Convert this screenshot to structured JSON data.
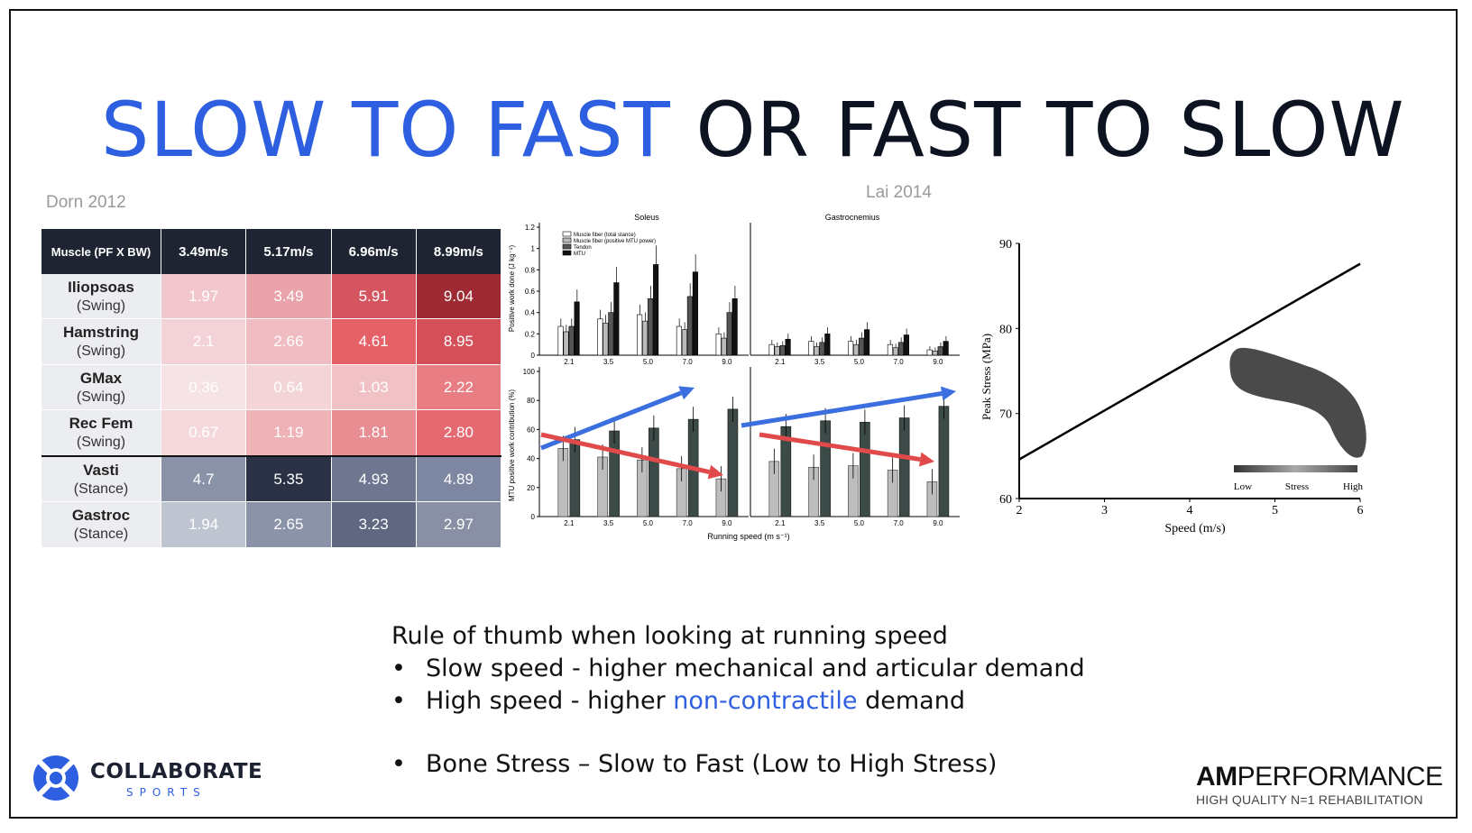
{
  "title": {
    "part1": "SLOW TO FAST",
    "part2": "OR",
    "part3": "FAST TO SLOW"
  },
  "citations": {
    "left": "Dorn 2012",
    "middle": "Lai 2014"
  },
  "table": {
    "headers": [
      "Muscle (PF X BW)",
      "3.49m/s",
      "5.17m/s",
      "6.96m/s",
      "8.99m/s"
    ],
    "rows": [
      {
        "name": "Iliopsoas",
        "phase": "(Swing)",
        "values": [
          "1.97",
          "3.49",
          "5.91",
          "9.04"
        ],
        "colors": [
          "#f1c6cc",
          "#eaa3ab",
          "#d4555f",
          "#9e2b33"
        ]
      },
      {
        "name": "Hamstring",
        "phase": "(Swing)",
        "values": [
          "2.1",
          "2.66",
          "4.61",
          "8.95"
        ],
        "colors": [
          "#f3d3d7",
          "#efbcc2",
          "#e46167",
          "#d44f58"
        ]
      },
      {
        "name": "GMax",
        "phase": "(Swing)",
        "values": [
          "0.36",
          "0.64",
          "1.03",
          "2.22"
        ],
        "colors": [
          "#f6e3e5",
          "#f3d5d8",
          "#f0c2c6",
          "#e87d83"
        ]
      },
      {
        "name": "Rec Fem",
        "phase": "(Swing)",
        "values": [
          "0.67",
          "1.19",
          "1.81",
          "2.80"
        ],
        "colors": [
          "#f4d8db",
          "#eeb2b7",
          "#e88e93",
          "#e46970"
        ]
      },
      {
        "name": "Vasti",
        "phase": "(Stance)",
        "values": [
          "4.7",
          "5.35",
          "4.93",
          "4.89"
        ],
        "colors": [
          "#8a92a8",
          "#2c3245",
          "#6f7790",
          "#7e87a1"
        ]
      },
      {
        "name": "Gastroc",
        "phase": "(Stance)",
        "values": [
          "1.94",
          "2.65",
          "3.23",
          "2.97"
        ],
        "colors": [
          "#bfc4d1",
          "#8b93a8",
          "#5f6781",
          "#8990a5"
        ]
      }
    ]
  },
  "lai_chart": {
    "panel_titles": [
      "Soleus",
      "Gastrocnemius"
    ],
    "top_ylabel": "Positive work done (J kg⁻¹)",
    "bottom_ylabel": "MTU positive work contribution (%)",
    "xlabel": "Running speed (m s⁻¹)",
    "legend": [
      "Muscle fiber (total stance)",
      "Muscle fiber (positive MTU power)",
      "Tendon",
      "MTU"
    ],
    "speeds": [
      "2.1",
      "3.5",
      "5.0",
      "7.0",
      "9.0"
    ],
    "top_yticks": [
      "0",
      "0.2",
      "0.4",
      "0.6",
      "0.8",
      "1",
      "1.2"
    ],
    "bottom_yticks": [
      "0",
      "20",
      "40",
      "60",
      "80",
      "100"
    ],
    "soleus_top": {
      "fiber_total": [
        0.27,
        0.34,
        0.38,
        0.27,
        0.2
      ],
      "fiber_pos": [
        0.22,
        0.3,
        0.32,
        0.24,
        0.16
      ],
      "tendon": [
        0.27,
        0.4,
        0.53,
        0.55,
        0.4
      ],
      "mtu": [
        0.5,
        0.68,
        0.85,
        0.78,
        0.53
      ]
    },
    "gastroc_top": {
      "fiber_total": [
        0.1,
        0.13,
        0.13,
        0.1,
        0.05
      ],
      "fiber_pos": [
        0.08,
        0.08,
        0.1,
        0.07,
        0.04
      ],
      "tendon": [
        0.09,
        0.12,
        0.16,
        0.12,
        0.08
      ],
      "mtu": [
        0.15,
        0.2,
        0.24,
        0.19,
        0.13
      ]
    },
    "soleus_bottom": {
      "fiber": [
        47,
        41,
        39,
        33,
        26
      ],
      "tendon": [
        53,
        59,
        61,
        67,
        74
      ]
    },
    "gastroc_bottom": {
      "fiber": [
        38,
        34,
        35,
        32,
        24
      ],
      "tendon": [
        62,
        66,
        65,
        68,
        76
      ]
    },
    "colors": {
      "up_arrow": "#3b6fe0",
      "down_arrow": "#e04a4a"
    }
  },
  "chart_data": {
    "type": "line",
    "x": [
      2,
      6
    ],
    "y": [
      64.6,
      87.6
    ],
    "xlabel": "Speed (m/s)",
    "ylabel": "Peak Stress (MPa)",
    "xlim": [
      2,
      6
    ],
    "ylim": [
      60,
      90
    ],
    "xticks": [
      "2",
      "3",
      "4",
      "5",
      "6"
    ],
    "yticks": [
      "60",
      "70",
      "80",
      "90"
    ],
    "colorbar_labels": [
      "Low",
      "Stress",
      "High"
    ]
  },
  "bullets": {
    "intro": "Rule of thumb when looking at running speed",
    "b1": "Slow speed - higher mechanical and articular demand",
    "b2_pre": "High speed - higher ",
    "b2_hl": "non-contractile",
    "b2_post": " demand",
    "b3": "Bone Stress – Slow to Fast (Low to High Stress)",
    "bullet_char": "•"
  },
  "logos": {
    "left_name": "COLLABORATE",
    "left_sub": "SPORTS",
    "right_bold": "AM",
    "right_rest": "PERFORMANCE",
    "right_tag": "HIGH QUALITY N=1 REHABILITATION"
  }
}
